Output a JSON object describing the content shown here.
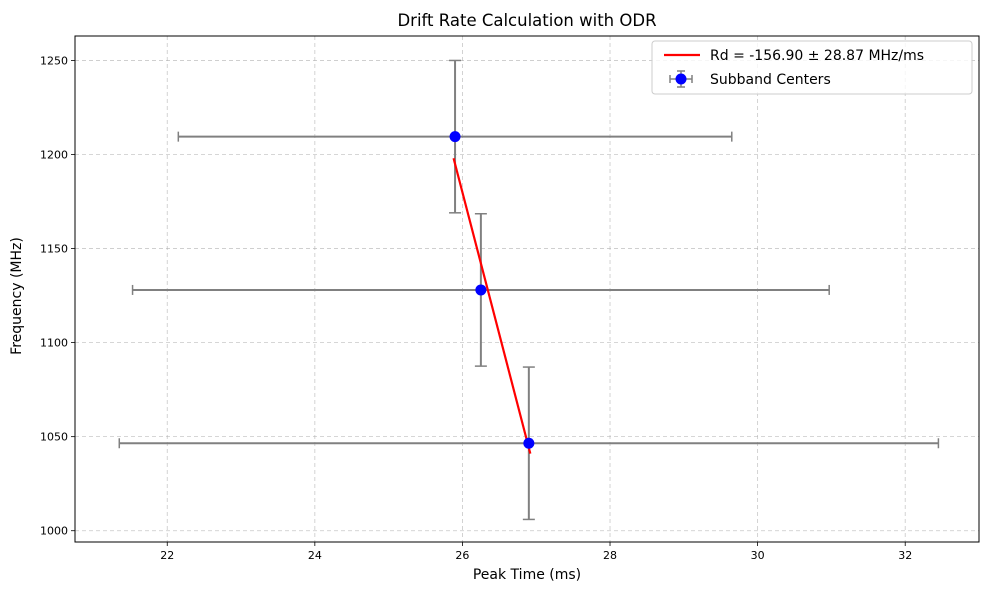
{
  "chart_data": {
    "type": "scatter",
    "title": "Drift Rate Calculation with ODR",
    "xlabel": "Peak Time (ms)",
    "ylabel": "Frequency (MHz)",
    "xlim": [
      20.75,
      33.0
    ],
    "ylim": [
      994,
      1263
    ],
    "xticks": [
      22,
      24,
      26,
      28,
      30,
      32
    ],
    "yticks": [
      1000,
      1050,
      1100,
      1150,
      1200,
      1250
    ],
    "grid": true,
    "legend_position": "top-right",
    "series": [
      {
        "name": "Subband Centers",
        "kind": "errorbar",
        "marker_color": "#0000ff",
        "errorbar_color": "#808080",
        "points": [
          {
            "x": 25.9,
            "y": 1209.5,
            "xerr_low": 3.75,
            "xerr_high": 3.75,
            "yerr": 40.5
          },
          {
            "x": 26.25,
            "y": 1128.0,
            "xerr_low": 4.72,
            "xerr_high": 4.72,
            "yerr": 40.5
          },
          {
            "x": 26.9,
            "y": 1046.5,
            "xerr_low": 5.55,
            "xerr_high": 5.55,
            "yerr": 40.5
          }
        ]
      },
      {
        "name": "Rd = -156.90 ± 28.87 MHz/ms",
        "kind": "line",
        "color": "#ff0000",
        "x": [
          25.88,
          26.92
        ],
        "y": [
          1198,
          1041
        ]
      }
    ]
  }
}
